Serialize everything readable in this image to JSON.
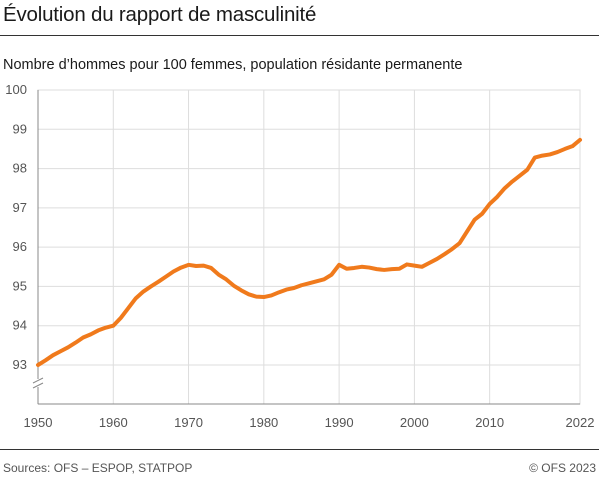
{
  "title": "Évolution du rapport de masculinité",
  "subtitle": "Nombre d’hommes pour 100 femmes, population résidante permanente",
  "footer": {
    "source": "Sources: OFS – ESPOP, STATPOP",
    "copyright": "© OFS 2023"
  },
  "colors": {
    "line": "#f07a1c",
    "grid": "#dddddd",
    "axis": "#888888"
  },
  "chart_data": {
    "type": "line",
    "title": "",
    "xlabel": "",
    "ylabel": "",
    "xlim": [
      1950,
      2022
    ],
    "ylim": [
      93,
      100
    ],
    "axis_break": true,
    "grid": true,
    "x_ticks": [
      1950,
      1960,
      1970,
      1980,
      1990,
      2000,
      2010,
      2022
    ],
    "y_ticks": [
      93,
      94,
      95,
      96,
      97,
      98,
      99,
      100
    ],
    "series": [
      {
        "x": [
          1950,
          1951,
          1952,
          1953,
          1954,
          1955,
          1956,
          1957,
          1958,
          1959,
          1960,
          1961,
          1962,
          1963,
          1964,
          1965,
          1966,
          1967,
          1968,
          1969,
          1970,
          1971,
          1972,
          1973,
          1974,
          1975,
          1976,
          1977,
          1978,
          1979,
          1980,
          1981,
          1982,
          1983,
          1984,
          1985,
          1986,
          1987,
          1988,
          1989,
          1990,
          1991,
          1992,
          1993,
          1994,
          1995,
          1996,
          1997,
          1998,
          1999,
          2000,
          2001,
          2002,
          2003,
          2004,
          2005,
          2006,
          2007,
          2008,
          2009,
          2010,
          2011,
          2012,
          2013,
          2014,
          2015,
          2016,
          2017,
          2018,
          2019,
          2020,
          2021,
          2022
        ],
        "values": [
          93.0,
          93.12,
          93.25,
          93.35,
          93.45,
          93.57,
          93.7,
          93.78,
          93.88,
          93.95,
          94.0,
          94.2,
          94.45,
          94.7,
          94.87,
          95.0,
          95.12,
          95.25,
          95.38,
          95.48,
          95.55,
          95.52,
          95.53,
          95.47,
          95.3,
          95.18,
          95.02,
          94.9,
          94.8,
          94.74,
          94.73,
          94.77,
          94.85,
          94.92,
          94.96,
          95.03,
          95.08,
          95.13,
          95.18,
          95.3,
          95.55,
          95.45,
          95.47,
          95.5,
          95.48,
          95.44,
          95.42,
          95.44,
          95.45,
          95.56,
          95.53,
          95.5,
          95.6,
          95.7,
          95.82,
          95.95,
          96.1,
          96.4,
          96.7,
          96.85,
          97.1,
          97.28,
          97.5,
          97.67,
          97.82,
          97.97,
          98.28,
          98.33,
          98.36,
          98.42,
          98.5,
          98.57,
          98.73
        ]
      }
    ]
  }
}
